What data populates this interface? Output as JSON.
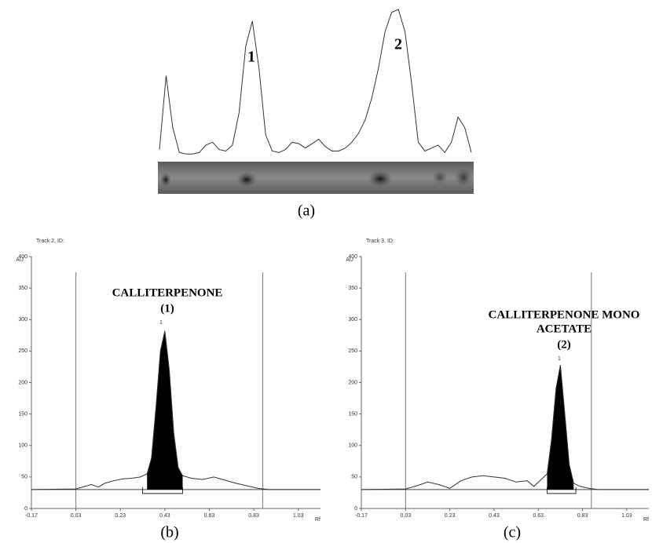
{
  "chart_data": [
    {
      "type": "line",
      "caption": "(a)",
      "peak_labels": [
        "1",
        "2"
      ],
      "values": [
        5,
        55,
        20,
        3,
        2,
        2,
        3,
        8,
        10,
        5,
        4,
        8,
        30,
        75,
        92,
        60,
        15,
        4,
        3,
        5,
        10,
        9,
        6,
        9,
        12,
        7,
        4,
        4,
        6,
        10,
        16,
        25,
        40,
        60,
        85,
        98,
        100,
        85,
        50,
        10,
        4,
        6,
        8,
        3,
        10,
        27,
        20,
        3
      ]
    },
    {
      "type": "line",
      "title": "Track 2, ID:",
      "ylabel": "AU",
      "xlabel": "Rf",
      "caption": "(b)",
      "annotation": [
        "CALLITERPENONE",
        "(1)"
      ],
      "peak_label": "1",
      "x": [
        -0.17,
        0.03,
        0.07,
        0.1,
        0.13,
        0.16,
        0.2,
        0.24,
        0.28,
        0.32,
        0.35,
        0.37,
        0.39,
        0.41,
        0.43,
        0.45,
        0.47,
        0.49,
        0.51,
        0.55,
        0.6,
        0.65,
        0.7,
        0.75,
        0.8,
        0.85,
        0.9,
        1.13
      ],
      "values": [
        30,
        31,
        35,
        38,
        34,
        40,
        44,
        47,
        48,
        50,
        55,
        80,
        160,
        250,
        282,
        220,
        120,
        65,
        52,
        48,
        46,
        50,
        45,
        40,
        36,
        32,
        30,
        30
      ],
      "fill_range": [
        0.33,
        0.51
      ],
      "baseline": 30,
      "vlines": [
        0.03,
        0.87
      ],
      "xlim": [
        -0.17,
        1.13
      ],
      "ylim": [
        0,
        400
      ],
      "xticks": [
        -0.17,
        0.03,
        0.23,
        0.43,
        0.63,
        0.83,
        1.03
      ],
      "yticks": [
        0,
        50,
        100,
        150,
        200,
        250,
        300,
        350,
        400
      ]
    },
    {
      "type": "line",
      "title": "Track 3, ID:",
      "ylabel": "AU",
      "xlabel": "Rf",
      "caption": "(c)",
      "annotation": [
        "CALLITERPENONE MONO",
        "ACETATE",
        "(2)"
      ],
      "peak_label": "1",
      "x": [
        -0.17,
        0.03,
        0.08,
        0.13,
        0.18,
        0.23,
        0.28,
        0.33,
        0.38,
        0.43,
        0.48,
        0.53,
        0.58,
        0.61,
        0.64,
        0.67,
        0.69,
        0.71,
        0.73,
        0.75,
        0.77,
        0.79,
        0.82,
        0.86,
        0.9,
        1.13
      ],
      "values": [
        30,
        31,
        36,
        42,
        38,
        32,
        44,
        50,
        52,
        50,
        48,
        42,
        44,
        35,
        45,
        55,
        110,
        190,
        228,
        150,
        70,
        40,
        35,
        32,
        30,
        30
      ],
      "fill_range": [
        0.67,
        0.8
      ],
      "baseline": 30,
      "vlines": [
        0.03,
        0.87
      ],
      "xlim": [
        -0.17,
        1.13
      ],
      "ylim": [
        0,
        400
      ],
      "xticks": [
        -0.17,
        0.03,
        0.23,
        0.43,
        0.63,
        0.83,
        1.03
      ],
      "yticks": [
        0,
        50,
        100,
        150,
        200,
        250,
        300,
        350,
        400
      ]
    }
  ]
}
